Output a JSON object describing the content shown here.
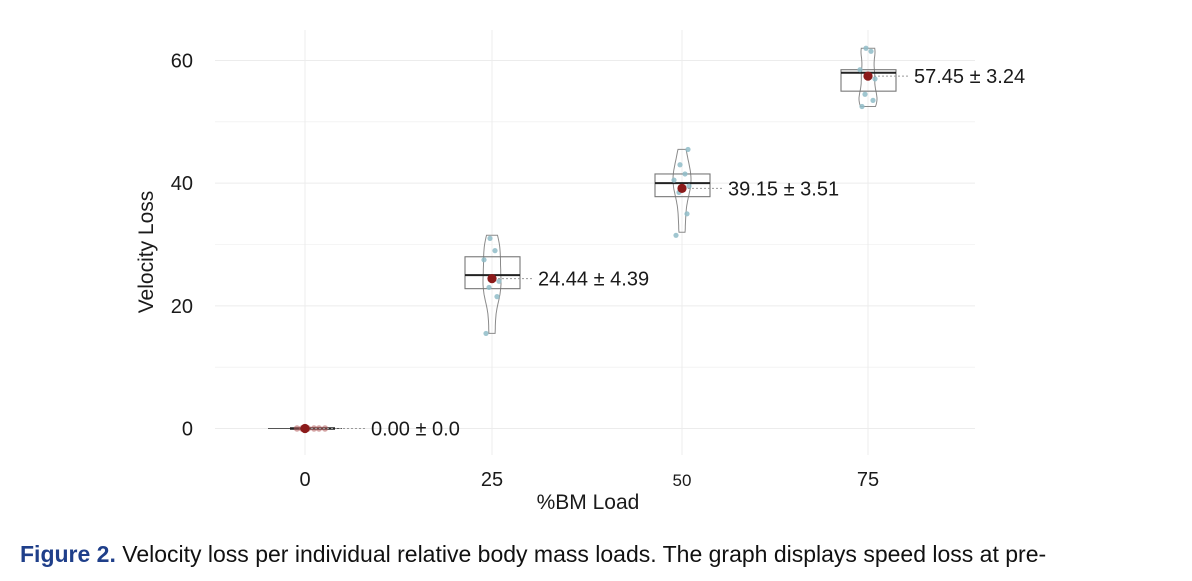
{
  "chart_data": {
    "type": "box-violin",
    "xlabel": "%BM Load",
    "ylabel": "Velocity Loss",
    "ylim": [
      -4,
      64
    ],
    "yticks": [
      0,
      20,
      40,
      60
    ],
    "categories": [
      "0",
      "25",
      "50",
      "75"
    ],
    "groups": [
      {
        "load": "0",
        "q1": 0.0,
        "median": 0.0,
        "q3": 0.0,
        "whisker_low": 0.0,
        "whisker_high": 0.0,
        "mean": 0.0,
        "annotation": "0.00 ± 0.0",
        "points": [
          0,
          0,
          0,
          0,
          0,
          0
        ]
      },
      {
        "load": "25",
        "q1": 22.8,
        "median": 25.0,
        "q3": 28.0,
        "whisker_low": 15.5,
        "whisker_high": 31.5,
        "mean": 24.44,
        "annotation": "24.44 ± 4.39",
        "points": [
          15.5,
          21.5,
          23.0,
          24.0,
          27.5,
          29.0,
          31.0
        ]
      },
      {
        "load": "50",
        "q1": 37.8,
        "median": 40.0,
        "q3": 41.5,
        "whisker_low": 32.0,
        "whisker_high": 45.5,
        "mean": 39.15,
        "annotation": "39.15 ± 3.51",
        "points": [
          31.5,
          35.0,
          38.5,
          39.5,
          40.5,
          41.5,
          43.0,
          45.5
        ]
      },
      {
        "load": "75",
        "q1": 55.0,
        "median": 58.0,
        "q3": 58.5,
        "whisker_low": 52.5,
        "whisker_high": 62.0,
        "mean": 57.45,
        "annotation": "57.45 ± 3.24",
        "points": [
          52.5,
          53.5,
          54.5,
          57.0,
          58.5,
          61.5,
          62.0
        ]
      }
    ],
    "grid": true,
    "colors": {
      "mean": "#8b1a1a",
      "points": "#8fbcc8",
      "box": "#777777",
      "median": "#222222",
      "grid": "#ececec"
    }
  },
  "caption": {
    "label": "Figure 2.",
    "text": "Velocity loss per individual relative body mass loads. The graph displays speed loss at pre-"
  }
}
